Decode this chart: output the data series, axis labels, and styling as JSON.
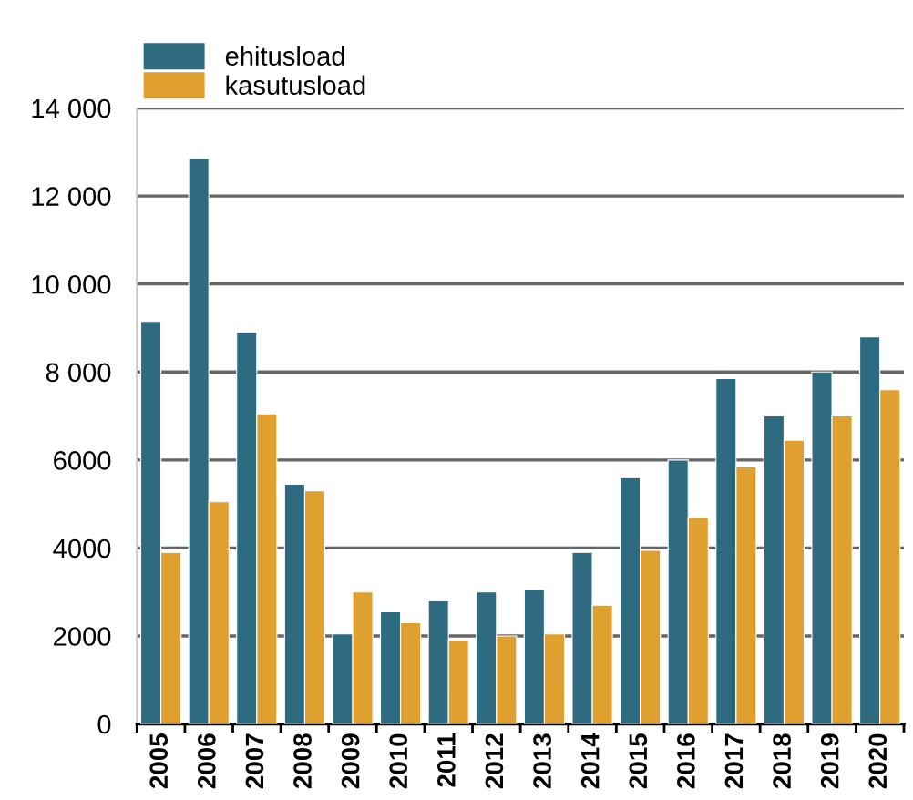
{
  "chart_data": {
    "type": "bar",
    "categories": [
      "2005",
      "2006",
      "2007",
      "2008",
      "2009",
      "2010",
      "2011",
      "2012",
      "2013",
      "2014",
      "2015",
      "2016",
      "2017",
      "2018",
      "2019",
      "2020"
    ],
    "series": [
      {
        "name": "ehitusload",
        "color": "#2e6b80",
        "values": [
          9150,
          12850,
          8900,
          5450,
          2050,
          2550,
          2800,
          3000,
          3050,
          3900,
          5600,
          6000,
          7850,
          7000,
          8000,
          8800
        ]
      },
      {
        "name": "kasutusload",
        "color": "#e0a030",
        "values": [
          3900,
          5050,
          7050,
          5300,
          3000,
          2300,
          1900,
          2000,
          2050,
          2700,
          3950,
          4700,
          5850,
          6450,
          7000,
          7600
        ]
      }
    ],
    "ylim": [
      0,
      14000
    ],
    "yticks": [
      0,
      2000,
      4000,
      6000,
      {
        "value": 8000,
        "label": "8 000"
      },
      {
        "value": 10000,
        "label": "10 000"
      },
      {
        "value": 12000,
        "label": "12 000"
      },
      {
        "value": 14000,
        "label": "14 000"
      }
    ],
    "grid": "y",
    "legend": "top left"
  }
}
